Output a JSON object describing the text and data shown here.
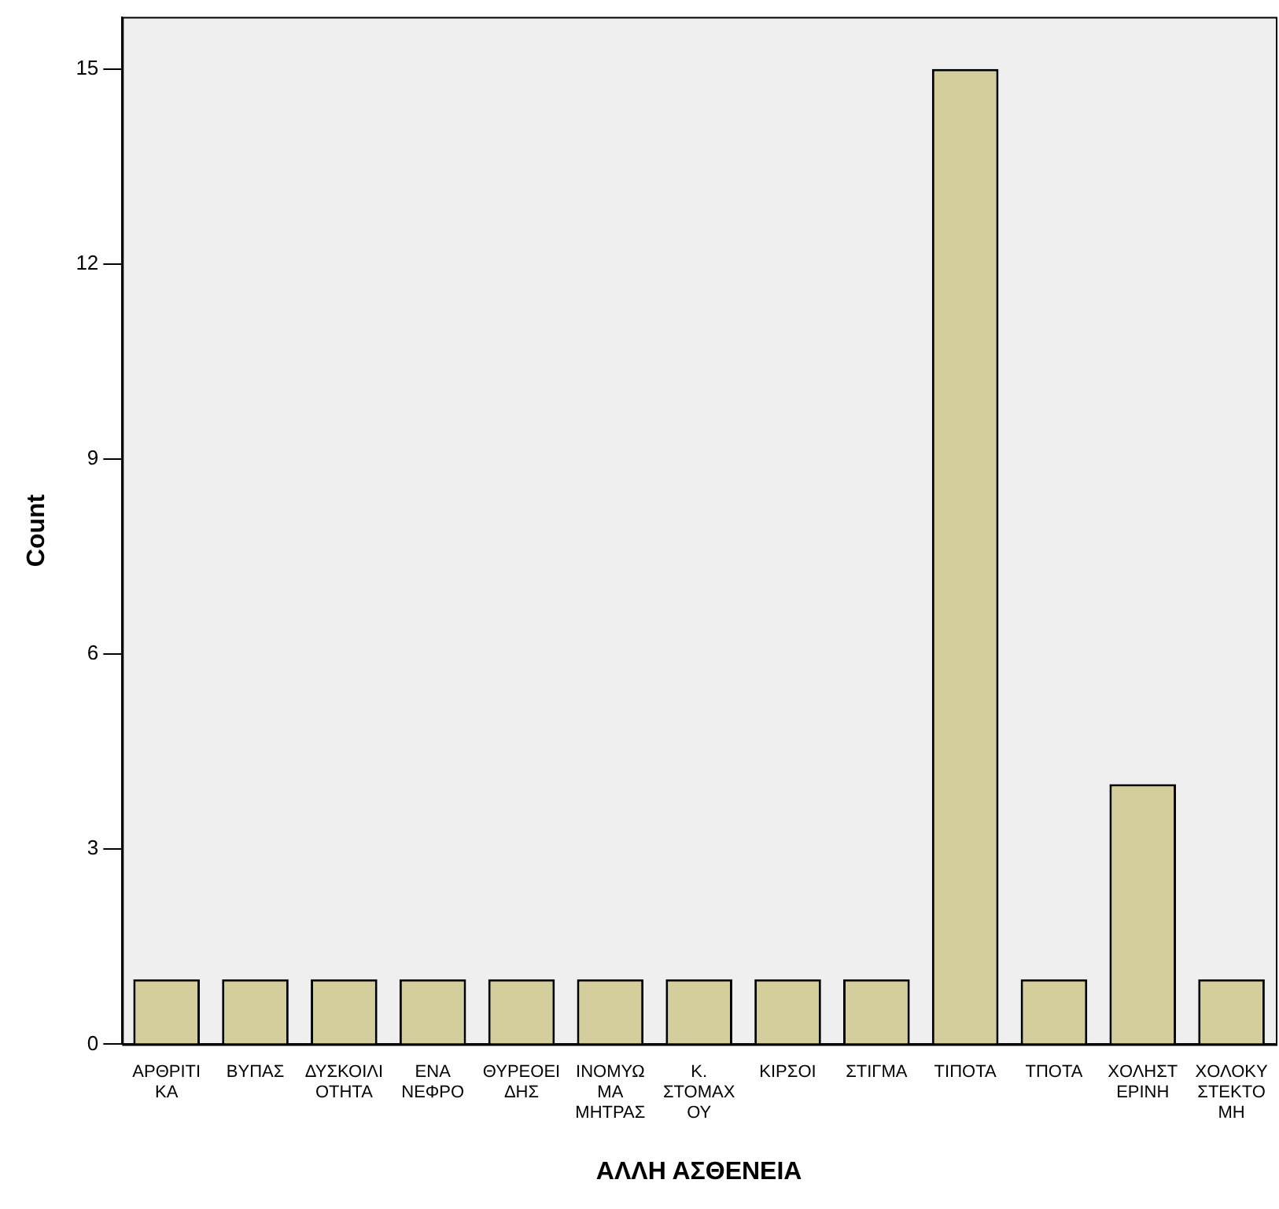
{
  "chart_data": {
    "type": "bar",
    "xlabel": "ΑΛΛΗ ΑΣΘΕΝΕΙΑ",
    "ylabel": "Count",
    "categories": [
      "ΑΡΘΡΙΤΙ\nΚΑ",
      "ΒΥΠΑΣ",
      "ΔΥΣΚΟΙΛΙ\nΟΤΗΤΑ",
      "ΕΝΑ\nΝΕΦΡΟ",
      "ΘΥΡΕΟΕΙ\nΔΗΣ",
      "ΙΝΟΜΥΩ\nΜΑ\nΜΗΤΡΑΣ",
      "Κ.\nΣΤΟΜΑΧ\nΟΥ",
      "ΚΙΡΣΟΙ",
      "ΣΤΙΓΜΑ",
      "ΤΙΠΟΤΑ",
      "ΤΠΟΤΑ",
      "ΧΟΛΗΣΤ\nΕΡΙΝΗ",
      "ΧΟΛΟΚΥ\nΣΤΕΚΤΟ\nΜΗ"
    ],
    "values": [
      1,
      1,
      1,
      1,
      1,
      1,
      1,
      1,
      1,
      15,
      1,
      4,
      1
    ],
    "color": "#d3ce9b",
    "ylim": [
      0,
      15.8
    ],
    "yticks": [
      0,
      3,
      6,
      9,
      12,
      15
    ],
    "grid": false,
    "legend": false
  }
}
